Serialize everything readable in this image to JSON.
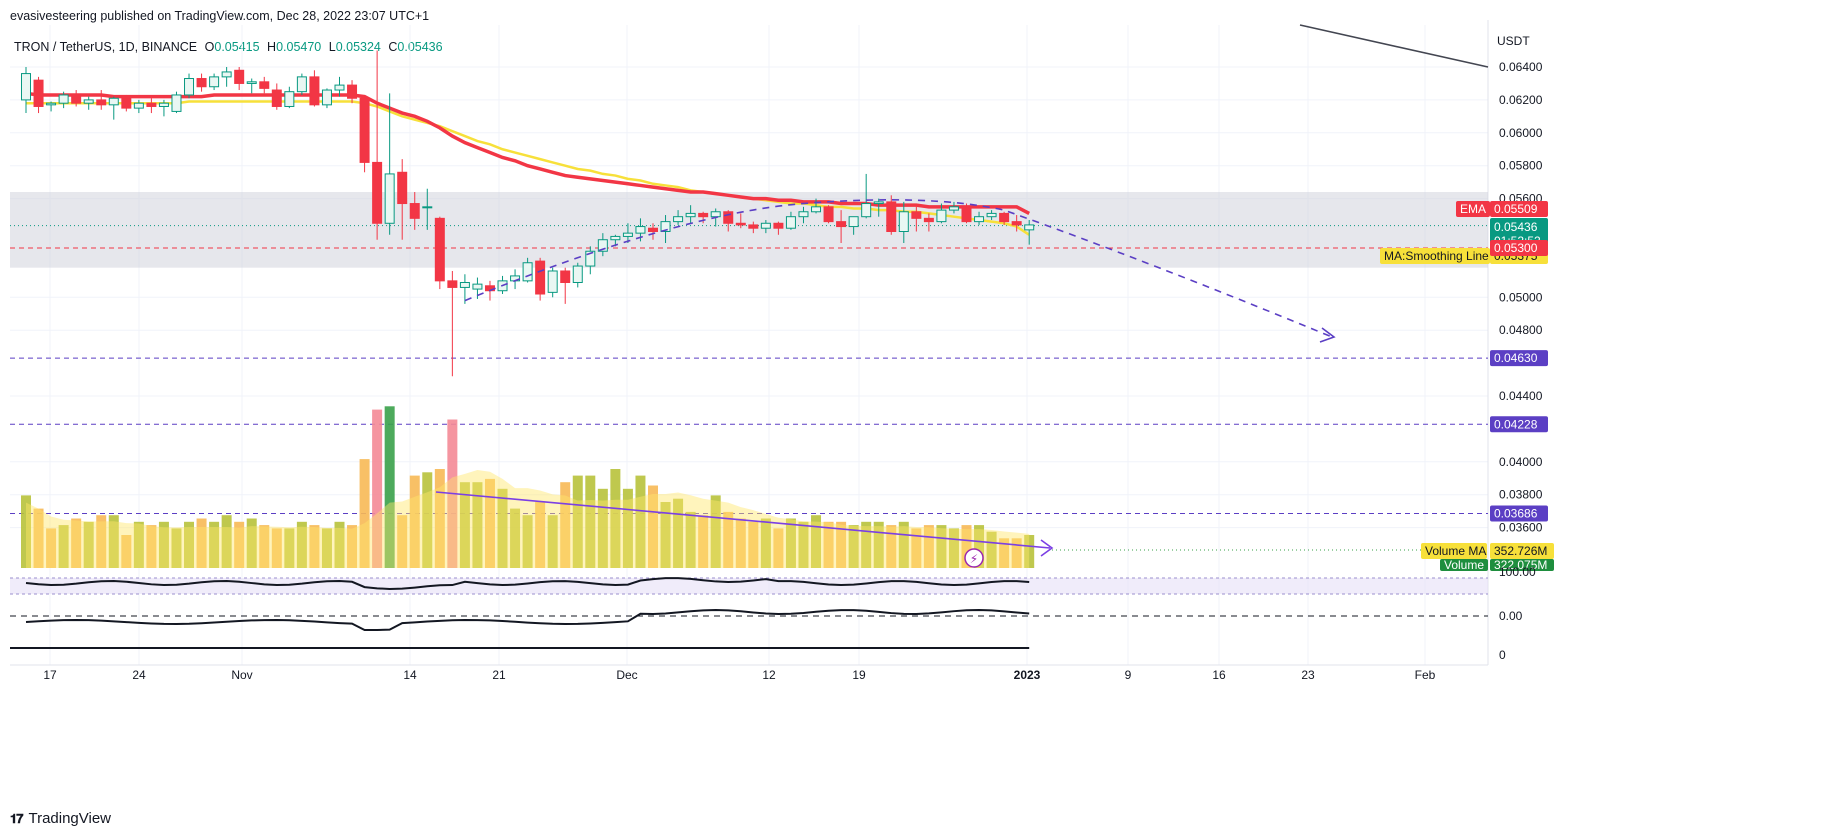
{
  "header": {
    "publisher_line": "evasivesteering published on TradingView.com, Dec 28, 2022 23:07 UTC+1"
  },
  "legend": {
    "symbol": "TRON / TetherUS, 1D, BINANCE",
    "open_label": "O",
    "open": "0.05415",
    "high_label": "H",
    "high": "0.05470",
    "low_label": "L",
    "low": "0.05324",
    "close_label": "C",
    "close": "0.05436"
  },
  "footer": {
    "brand": "TradingView"
  },
  "colors": {
    "up": "#089981",
    "down": "#f23645",
    "ema": "#f23645",
    "ma": "#f7e03a",
    "dashed_path": "#5b3fc4",
    "grid": "#f0f3fa",
    "zone": "#d1d4dc",
    "level_purple": "#5b3fc4",
    "level_red": "#f23645"
  },
  "chart_data": {
    "type": "candlestick",
    "title": "TRON / TetherUS, 1D, BINANCE",
    "y_axis": {
      "unit_label": "USDT",
      "range": [
        0.0355,
        0.0652
      ],
      "ticks": [
        "0.06400",
        "0.06200",
        "0.06000",
        "0.05800",
        "0.05600",
        "0.05000",
        "0.04800",
        "0.04400",
        "0.04000",
        "0.03800",
        "0.03600"
      ]
    },
    "x_axis": {
      "ticks": [
        "17",
        "24",
        "Nov",
        "14",
        "21",
        "Dec",
        "12",
        "19",
        "2023",
        "9",
        "16",
        "23",
        "Feb"
      ]
    },
    "date_range": {
      "start": "2022-10-11",
      "end": "2022-12-28"
    },
    "candles": [
      [
        0.062,
        0.064,
        0.0612,
        0.0636
      ],
      [
        0.0632,
        0.0634,
        0.0612,
        0.0616
      ],
      [
        0.0617,
        0.0619,
        0.0613,
        0.0618
      ],
      [
        0.0618,
        0.0625,
        0.0615,
        0.0623
      ],
      [
        0.0623,
        0.0626,
        0.0616,
        0.0618
      ],
      [
        0.0618,
        0.0622,
        0.0614,
        0.062
      ],
      [
        0.062,
        0.0626,
        0.0614,
        0.0617
      ],
      [
        0.0617,
        0.0622,
        0.0608,
        0.0621
      ],
      [
        0.0621,
        0.0623,
        0.0613,
        0.0615
      ],
      [
        0.0615,
        0.062,
        0.0612,
        0.0618
      ],
      [
        0.0618,
        0.0621,
        0.0612,
        0.0616
      ],
      [
        0.0616,
        0.062,
        0.061,
        0.0618
      ],
      [
        0.0613,
        0.0625,
        0.0612,
        0.0623
      ],
      [
        0.0623,
        0.0636,
        0.0621,
        0.0633
      ],
      [
        0.0633,
        0.0636,
        0.0625,
        0.0628
      ],
      [
        0.0628,
        0.0636,
        0.0626,
        0.0634
      ],
      [
        0.0634,
        0.064,
        0.0628,
        0.0637
      ],
      [
        0.0638,
        0.064,
        0.0626,
        0.063
      ],
      [
        0.063,
        0.0633,
        0.0624,
        0.0631
      ],
      [
        0.0631,
        0.0634,
        0.0624,
        0.0627
      ],
      [
        0.0626,
        0.063,
        0.0614,
        0.0616
      ],
      [
        0.0616,
        0.0628,
        0.0615,
        0.0625
      ],
      [
        0.0625,
        0.0636,
        0.0623,
        0.0634
      ],
      [
        0.0634,
        0.0638,
        0.0616,
        0.0617
      ],
      [
        0.0617,
        0.0627,
        0.0615,
        0.0626
      ],
      [
        0.0626,
        0.0634,
        0.0622,
        0.0629
      ],
      [
        0.0629,
        0.0632,
        0.0618,
        0.0621
      ],
      [
        0.0621,
        0.0622,
        0.0576,
        0.0582
      ],
      [
        0.0582,
        0.065,
        0.0535,
        0.0545
      ],
      [
        0.0545,
        0.0624,
        0.0538,
        0.0575
      ],
      [
        0.0576,
        0.0584,
        0.0535,
        0.0557
      ],
      [
        0.0557,
        0.0564,
        0.0541,
        0.0548
      ],
      [
        0.0555,
        0.0566,
        0.0541,
        0.0555
      ],
      [
        0.0548,
        0.0549,
        0.0505,
        0.051
      ],
      [
        0.051,
        0.0516,
        0.0452,
        0.0506
      ],
      [
        0.0506,
        0.0514,
        0.0496,
        0.0509
      ],
      [
        0.0505,
        0.0512,
        0.0499,
        0.0508
      ],
      [
        0.0507,
        0.051,
        0.0498,
        0.0504
      ],
      [
        0.0504,
        0.0513,
        0.0502,
        0.051
      ],
      [
        0.051,
        0.0517,
        0.0505,
        0.0513
      ],
      [
        0.051,
        0.0524,
        0.0509,
        0.0521
      ],
      [
        0.0522,
        0.0524,
        0.0498,
        0.0502
      ],
      [
        0.0503,
        0.0518,
        0.05,
        0.0516
      ],
      [
        0.0516,
        0.0518,
        0.0496,
        0.0509
      ],
      [
        0.0509,
        0.0521,
        0.0506,
        0.0519
      ],
      [
        0.0519,
        0.0531,
        0.0514,
        0.0528
      ],
      [
        0.0528,
        0.0539,
        0.0525,
        0.0535
      ],
      [
        0.0535,
        0.0538,
        0.0531,
        0.0537
      ],
      [
        0.0537,
        0.0545,
        0.0533,
        0.0539
      ],
      [
        0.0539,
        0.0548,
        0.0534,
        0.0543
      ],
      [
        0.0542,
        0.0545,
        0.0535,
        0.054
      ],
      [
        0.054,
        0.055,
        0.0533,
        0.0546
      ],
      [
        0.0546,
        0.0553,
        0.0544,
        0.0549
      ],
      [
        0.0549,
        0.0556,
        0.0545,
        0.0551
      ],
      [
        0.0551,
        0.0552,
        0.0545,
        0.0549
      ],
      [
        0.0549,
        0.0554,
        0.0543,
        0.0552
      ],
      [
        0.0552,
        0.0553,
        0.054,
        0.0545
      ],
      [
        0.0545,
        0.0551,
        0.0542,
        0.0544
      ],
      [
        0.0544,
        0.0546,
        0.0539,
        0.0542
      ],
      [
        0.0542,
        0.0547,
        0.0539,
        0.0545
      ],
      [
        0.0545,
        0.0546,
        0.0538,
        0.0542
      ],
      [
        0.0542,
        0.0552,
        0.0541,
        0.0549
      ],
      [
        0.0549,
        0.0555,
        0.0545,
        0.0552
      ],
      [
        0.0552,
        0.056,
        0.0551,
        0.0555
      ],
      [
        0.0555,
        0.0556,
        0.0545,
        0.0546
      ],
      [
        0.0546,
        0.0553,
        0.0533,
        0.0543
      ],
      [
        0.0543,
        0.0549,
        0.0538,
        0.0549
      ],
      [
        0.0549,
        0.0575,
        0.0548,
        0.0557
      ],
      [
        0.0557,
        0.056,
        0.0549,
        0.0558
      ],
      [
        0.0558,
        0.0562,
        0.0538,
        0.054
      ],
      [
        0.054,
        0.0558,
        0.0533,
        0.0552
      ],
      [
        0.0552,
        0.0555,
        0.054,
        0.0548
      ],
      [
        0.0548,
        0.0551,
        0.054,
        0.0546
      ],
      [
        0.0546,
        0.0557,
        0.0545,
        0.0553
      ],
      [
        0.0553,
        0.0558,
        0.0551,
        0.0555
      ],
      [
        0.0555,
        0.0557,
        0.0545,
        0.0546
      ],
      [
        0.0546,
        0.0552,
        0.0544,
        0.0549
      ],
      [
        0.0549,
        0.0553,
        0.0547,
        0.0551
      ],
      [
        0.0551,
        0.0552,
        0.0544,
        0.0546
      ],
      [
        0.0546,
        0.055,
        0.054,
        0.0544
      ],
      [
        0.0541,
        0.0547,
        0.0532,
        0.0544
      ]
    ],
    "volume": [
      22,
      18,
      12,
      13,
      15,
      14,
      16,
      16,
      10,
      14,
      13,
      14,
      12,
      14,
      15,
      14,
      16,
      14,
      15,
      13,
      12,
      12,
      14,
      13,
      12,
      14,
      13,
      33,
      48,
      49,
      16,
      28,
      29,
      30,
      45,
      26,
      26,
      27,
      24,
      18,
      16,
      20,
      16,
      26,
      28,
      28,
      24,
      30,
      24,
      28,
      25,
      20,
      21,
      17,
      16,
      22,
      17,
      15,
      14,
      15,
      12,
      15,
      14,
      16,
      14,
      14,
      13,
      14,
      14,
      13,
      14,
      12,
      13,
      13,
      12,
      13,
      13,
      11,
      9,
      9,
      10
    ],
    "volume_up_color_flags": [
      1,
      0,
      0,
      1,
      0,
      1,
      0,
      1,
      0,
      1,
      0,
      1,
      1,
      1,
      0,
      1,
      1,
      0,
      1,
      0,
      0,
      1,
      1,
      0,
      1,
      1,
      0,
      0,
      0,
      1,
      0,
      0,
      1,
      0,
      0,
      1,
      1,
      0,
      1,
      1,
      1,
      0,
      1,
      0,
      1,
      1,
      1,
      1,
      1,
      1,
      0,
      1,
      1,
      1,
      0,
      1,
      0,
      0,
      0,
      1,
      0,
      1,
      1,
      1,
      0,
      0,
      1,
      1,
      1,
      0,
      1,
      0,
      0,
      1,
      1,
      0,
      1,
      1,
      0,
      0,
      1
    ],
    "ema": [
      0.0624,
      0.0623,
      0.0623,
      0.0623,
      0.0623,
      0.0623,
      0.0623,
      0.0622,
      0.0622,
      0.0622,
      0.0622,
      0.0622,
      0.0622,
      0.0622,
      0.0622,
      0.0623,
      0.0623,
      0.0623,
      0.0623,
      0.0623,
      0.0623,
      0.0623,
      0.0623,
      0.0623,
      0.0623,
      0.0623,
      0.0623,
      0.0622,
      0.0618,
      0.0615,
      0.0612,
      0.061,
      0.0607,
      0.0603,
      0.0598,
      0.0594,
      0.0591,
      0.0588,
      0.0585,
      0.0583,
      0.058,
      0.0578,
      0.0576,
      0.0574,
      0.0573,
      0.0572,
      0.0571,
      0.057,
      0.0569,
      0.0568,
      0.0567,
      0.0566,
      0.0565,
      0.0564,
      0.0564,
      0.0563,
      0.0562,
      0.0561,
      0.056,
      0.056,
      0.0559,
      0.0559,
      0.0558,
      0.0558,
      0.0558,
      0.0557,
      0.0557,
      0.0557,
      0.0556,
      0.0556,
      0.0556,
      0.0556,
      0.0555,
      0.0555,
      0.0555,
      0.0555,
      0.0555,
      0.0555,
      0.0555,
      0.0555,
      0.0551
    ],
    "ma_smoothing_line": [
      0.0618,
      0.0618,
      0.0618,
      0.0618,
      0.0618,
      0.0618,
      0.0618,
      0.0618,
      0.0618,
      0.0618,
      0.0618,
      0.0618,
      0.0618,
      0.0619,
      0.0619,
      0.0619,
      0.0619,
      0.0619,
      0.0619,
      0.0619,
      0.0619,
      0.0619,
      0.0619,
      0.0619,
      0.0619,
      0.0619,
      0.0619,
      0.0618,
      0.0616,
      0.0613,
      0.061,
      0.0608,
      0.0606,
      0.0604,
      0.0601,
      0.0598,
      0.0595,
      0.0593,
      0.059,
      0.0588,
      0.0586,
      0.0584,
      0.0582,
      0.058,
      0.0578,
      0.0577,
      0.0575,
      0.0574,
      0.0572,
      0.0571,
      0.0569,
      0.0568,
      0.0567,
      0.0565,
      0.0564,
      0.0563,
      0.0562,
      0.0561,
      0.056,
      0.0559,
      0.0558,
      0.0557,
      0.0557,
      0.0556,
      0.0555,
      0.0555,
      0.0554,
      0.0554,
      0.0553,
      0.0553,
      0.0552,
      0.0552,
      0.0551,
      0.055,
      0.0549,
      0.0548,
      0.0547,
      0.0546,
      0.0545,
      0.0543,
      0.0538
    ],
    "horizontal_levels": [
      {
        "value": 0.053,
        "label": "0.05300",
        "style": "dashed",
        "color": "red"
      },
      {
        "value": 0.0463,
        "label": "0.04630",
        "style": "dashed",
        "color": "purple"
      },
      {
        "value": 0.04228,
        "label": "0.04228",
        "style": "dashed",
        "color": "purple"
      },
      {
        "value": 0.03686,
        "label": "0.03686",
        "style": "dashed",
        "color": "purple"
      }
    ],
    "zone": {
      "from": 0.0518,
      "to": 0.0564
    },
    "price_labels": {
      "ema_title": "EMA",
      "ema_value": "0.05509",
      "last_price": "0.05436",
      "countdown": "01:52:52",
      "ma_title": "MA:Smoothing Line",
      "ma_value": "0.05375"
    },
    "volume_labels": {
      "volume_ma_title": "Volume MA",
      "volume_ma_value": "352.726M",
      "volume_title": "Volume",
      "volume_value": "322.075M"
    },
    "oscillator_labels": {
      "tick_top": "100.00",
      "tick_mid": "0.00",
      "tick_bottom": "0"
    }
  }
}
